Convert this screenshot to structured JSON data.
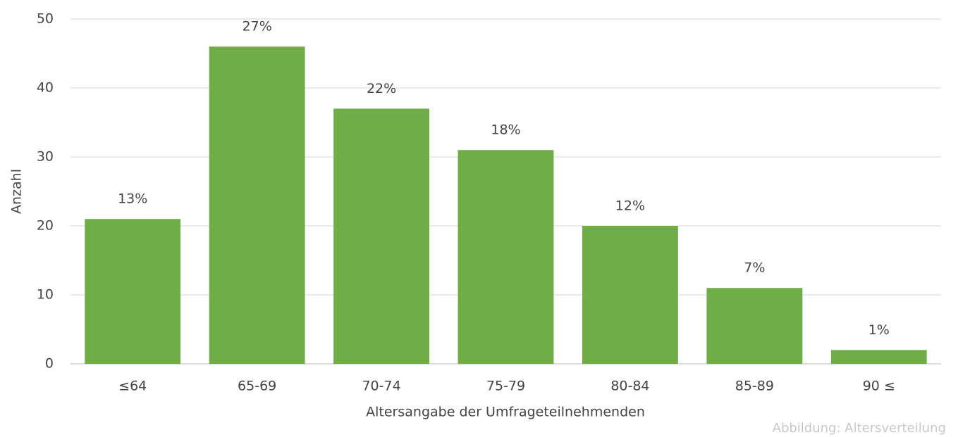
{
  "chart_data": {
    "type": "bar",
    "categories": [
      "≤64",
      "65-69",
      "70-74",
      "75-79",
      "80-84",
      "85-89",
      "90 ≤"
    ],
    "values": [
      21,
      46,
      37,
      31,
      20,
      11,
      2
    ],
    "share_labels": [
      "13%",
      "27%",
      "22%",
      "18%",
      "12%",
      "7%",
      "1%"
    ],
    "color": "#70ad47",
    "ylim": [
      0,
      50
    ],
    "yticks": [
      0,
      10,
      20,
      30,
      40,
      50
    ],
    "grid": true,
    "y_label": "Anzahl",
    "x_label": "Altersangabe der Umfrageteilnehmenden",
    "caption": "Abbildung: Altersverteilung"
  }
}
